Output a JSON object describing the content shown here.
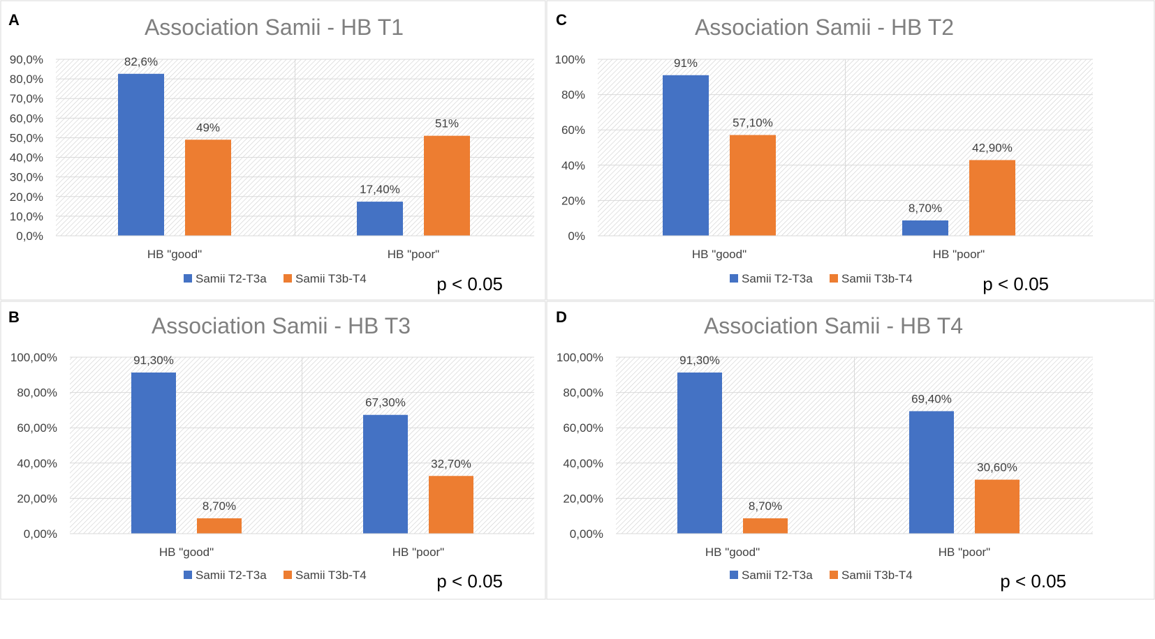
{
  "figure": {
    "colors": {
      "series1": "#4472C4",
      "series2": "#ED7D31",
      "grid": "#D9D9D9",
      "hatch": "#C8C8C8",
      "title": "#7F7F7F",
      "text": "#404040",
      "panel_border": "#D9D9D9"
    }
  },
  "chart_data": [
    {
      "panel_letter": "A",
      "type": "bar",
      "title": "Association Samii - HB T1",
      "categories": [
        "HB \"good\"",
        "HB \"poor\""
      ],
      "series": [
        {
          "name": "Samii T2-T3a",
          "values": [
            82.6,
            17.4
          ],
          "labels": [
            "82,6%",
            "17,40%"
          ]
        },
        {
          "name": "Samii T3b-T4",
          "values": [
            49,
            51
          ],
          "labels": [
            "49%",
            "51%"
          ]
        }
      ],
      "ylim": [
        0,
        90
      ],
      "yticks": [
        0,
        10,
        20,
        30,
        40,
        50,
        60,
        70,
        80,
        90
      ],
      "ytick_labels": [
        "0,0%",
        "10,0%",
        "20,0%",
        "30,0%",
        "40,0%",
        "50,0%",
        "60,0%",
        "70,0%",
        "80,0%",
        "90,0%"
      ],
      "xlabel": "",
      "ylabel": "",
      "legend_position": "bottom",
      "annotation": "p < 0.05"
    },
    {
      "panel_letter": "C",
      "type": "bar",
      "title": "Association Samii - HB T2",
      "categories": [
        "HB \"good\"",
        "HB \"poor\""
      ],
      "series": [
        {
          "name": "Samii T2-T3a",
          "values": [
            91,
            8.7
          ],
          "labels": [
            "91%",
            "8,70%"
          ]
        },
        {
          "name": "Samii T3b-T4",
          "values": [
            57.1,
            42.9
          ],
          "labels": [
            "57,10%",
            "42,90%"
          ]
        }
      ],
      "ylim": [
        0,
        100
      ],
      "yticks": [
        0,
        20,
        40,
        60,
        80,
        100
      ],
      "ytick_labels": [
        "0%",
        "20%",
        "40%",
        "60%",
        "80%",
        "100%"
      ],
      "xlabel": "",
      "ylabel": "",
      "legend_position": "bottom",
      "annotation": "p < 0.05"
    },
    {
      "panel_letter": "B",
      "type": "bar",
      "title": "Association Samii - HB T3",
      "categories": [
        "HB \"good\"",
        "HB \"poor\""
      ],
      "series": [
        {
          "name": "Samii T2-T3a",
          "values": [
            91.3,
            67.3
          ],
          "labels": [
            "91,30%",
            "67,30%"
          ]
        },
        {
          "name": "Samii T3b-T4",
          "values": [
            8.7,
            32.7
          ],
          "labels": [
            "8,70%",
            "32,70%"
          ]
        }
      ],
      "ylim": [
        0,
        100
      ],
      "yticks": [
        0,
        20,
        40,
        60,
        80,
        100
      ],
      "ytick_labels": [
        "0,00%",
        "20,00%",
        "40,00%",
        "60,00%",
        "80,00%",
        "100,00%"
      ],
      "xlabel": "",
      "ylabel": "",
      "legend_position": "bottom",
      "annotation": "p < 0.05"
    },
    {
      "panel_letter": "D",
      "type": "bar",
      "title": "Association Samii - HB T4",
      "categories": [
        "HB \"good\"",
        "HB \"poor\""
      ],
      "series": [
        {
          "name": "Samii T2-T3a",
          "values": [
            91.3,
            69.4
          ],
          "labels": [
            "91,30%",
            "69,40%"
          ]
        },
        {
          "name": "Samii T3b-T4",
          "values": [
            8.7,
            30.6
          ],
          "labels": [
            "8,70%",
            "30,60%"
          ]
        }
      ],
      "ylim": [
        0,
        100
      ],
      "yticks": [
        0,
        20,
        40,
        60,
        80,
        100
      ],
      "ytick_labels": [
        "0,00%",
        "20,00%",
        "40,00%",
        "60,00%",
        "80,00%",
        "100,00%"
      ],
      "xlabel": "",
      "ylabel": "",
      "legend_position": "bottom",
      "annotation": "p < 0.05"
    }
  ]
}
